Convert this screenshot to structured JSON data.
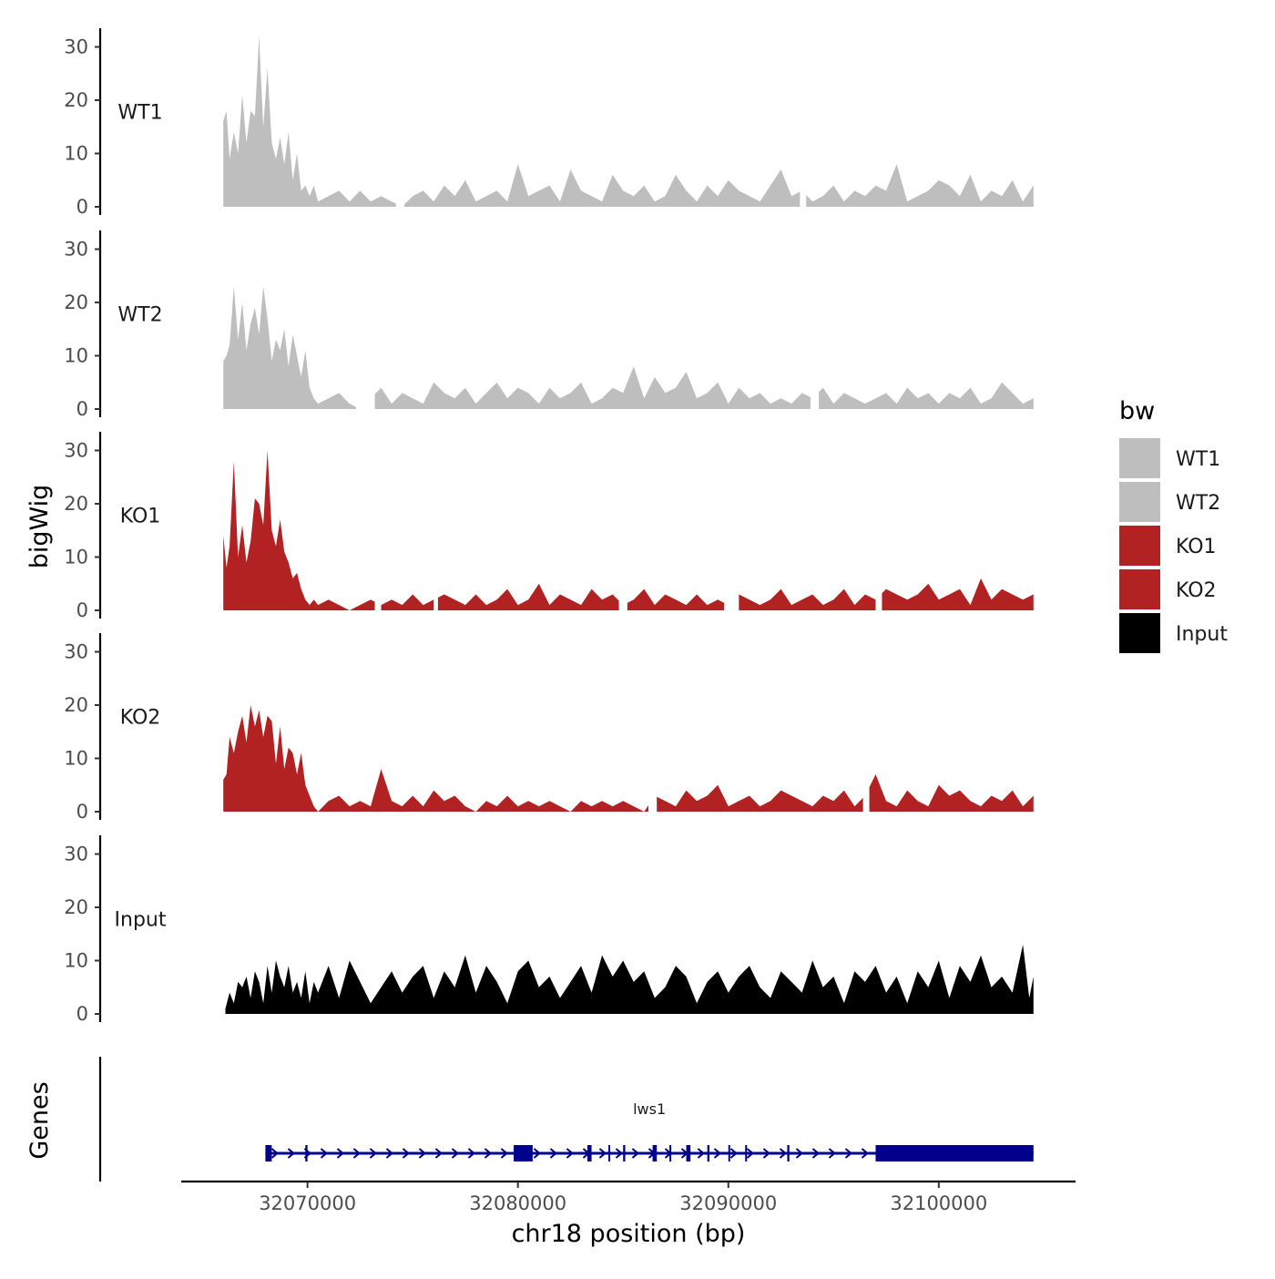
{
  "chart_data": {
    "type": "area",
    "title": "",
    "xlabel": "chr18 position (bp)",
    "ylabel": "bigWig",
    "genes_label": "Genes",
    "xlim": [
      32064000,
      32106500
    ],
    "ylim": [
      0,
      33
    ],
    "y_ticks": [
      0,
      10,
      20,
      30
    ],
    "x_ticks": [
      32070000,
      32080000,
      32090000,
      32100000
    ],
    "legend": {
      "title": "bw",
      "position": "right",
      "entries": [
        {
          "label": "WT1",
          "color": "#bebebe"
        },
        {
          "label": "WT2",
          "color": "#bebebe"
        },
        {
          "label": "KO1",
          "color": "#b22222"
        },
        {
          "label": "KO2",
          "color": "#b22222"
        },
        {
          "label": "Input",
          "color": "#000000"
        }
      ]
    },
    "series": [
      {
        "name": "WT1",
        "color": "#bebebe",
        "x": [
          32066000,
          32066150,
          32066300,
          32066500,
          32066700,
          32066900,
          32067100,
          32067300,
          32067500,
          32067700,
          32067900,
          32068100,
          32068300,
          32068500,
          32068700,
          32068900,
          32069100,
          32069300,
          32069500,
          32069700,
          32069900,
          32070100,
          32070300,
          32070500,
          32071000,
          32071500,
          32072000,
          32072500,
          32073000,
          32073500,
          32074000,
          32074500,
          32075000,
          32075500,
          32076000,
          32076500,
          32077000,
          32077500,
          32078000,
          32078500,
          32079000,
          32079500,
          32080000,
          32080500,
          32081000,
          32081500,
          32082000,
          32082500,
          32083000,
          32083500,
          32084000,
          32084500,
          32085000,
          32085500,
          32086000,
          32086500,
          32087000,
          32087500,
          32088000,
          32088500,
          32089000,
          32089500,
          32090000,
          32090500,
          32091000,
          32091500,
          32092000,
          32092500,
          32093000,
          32093500,
          32094000,
          32094500,
          32095000,
          32095500,
          32096000,
          32096500,
          32097000,
          32097500,
          32098000,
          32098500,
          32099000,
          32099500,
          32100000,
          32100500,
          32101000,
          32101500,
          32102000,
          32102500,
          32103000,
          32103500,
          32104000,
          32104500
        ],
        "values": [
          16,
          18,
          9,
          14,
          10,
          21,
          12,
          18,
          17,
          32,
          15,
          26,
          12,
          9,
          13,
          8,
          14,
          5,
          10,
          3,
          4,
          2,
          4,
          1,
          2,
          3,
          1,
          3,
          1,
          2,
          1,
          0,
          2,
          3,
          1,
          4,
          2,
          5,
          1,
          2,
          3,
          1,
          8,
          2,
          3,
          4,
          1,
          7,
          3,
          2,
          1,
          6,
          3,
          2,
          4,
          1,
          2,
          6,
          3,
          1,
          4,
          2,
          5,
          3,
          2,
          1,
          4,
          7,
          2,
          3,
          1,
          2,
          4,
          1,
          3,
          2,
          4,
          3,
          8,
          1,
          2,
          3,
          5,
          4,
          2,
          6,
          1,
          3,
          2,
          5,
          1,
          4
        ],
        "gaps": [
          [
            32074200,
            32074600
          ],
          [
            32093400,
            32093700
          ]
        ]
      },
      {
        "name": "WT2",
        "color": "#bebebe",
        "x": [
          32066000,
          32066150,
          32066300,
          32066500,
          32066700,
          32066900,
          32067100,
          32067300,
          32067500,
          32067700,
          32067900,
          32068100,
          32068300,
          32068500,
          32068700,
          32068900,
          32069100,
          32069300,
          32069500,
          32069700,
          32069900,
          32070100,
          32070300,
          32070500,
          32071000,
          32071500,
          32072000,
          32072500,
          32073000,
          32073500,
          32074000,
          32074500,
          32075000,
          32075500,
          32076000,
          32076500,
          32077000,
          32077500,
          32078000,
          32078500,
          32079000,
          32079500,
          32080000,
          32080500,
          32081000,
          32081500,
          32082000,
          32082500,
          32083000,
          32083500,
          32084000,
          32084500,
          32085000,
          32085500,
          32086000,
          32086500,
          32087000,
          32087500,
          32088000,
          32088500,
          32089000,
          32089500,
          32090000,
          32090500,
          32091000,
          32091500,
          32092000,
          32092500,
          32093000,
          32093500,
          32094000,
          32094500,
          32095000,
          32095500,
          32096000,
          32096500,
          32097000,
          32097500,
          32098000,
          32098500,
          32099000,
          32099500,
          32100000,
          32100500,
          32101000,
          32101500,
          32102000,
          32102500,
          32103000,
          32103500,
          32104000,
          32104500
        ],
        "values": [
          9,
          10,
          12,
          23,
          13,
          20,
          11,
          16,
          19,
          14,
          23,
          17,
          9,
          13,
          11,
          15,
          8,
          14,
          10,
          6,
          11,
          4,
          2,
          1,
          2,
          3,
          1,
          0,
          2,
          4,
          1,
          3,
          2,
          1,
          5,
          3,
          2,
          4,
          1,
          3,
          5,
          2,
          4,
          3,
          1,
          4,
          2,
          3,
          5,
          1,
          2,
          4,
          3,
          8,
          2,
          6,
          3,
          4,
          7,
          2,
          3,
          5,
          1,
          4,
          2,
          3,
          1,
          2,
          1,
          3,
          2,
          4,
          1,
          3,
          2,
          1,
          2,
          3,
          1,
          4,
          2,
          3,
          1,
          3,
          2,
          4,
          1,
          2,
          5,
          3,
          1,
          2
        ],
        "gaps": [
          [
            32072300,
            32073200
          ],
          [
            32093900,
            32094300
          ]
        ]
      },
      {
        "name": "KO1",
        "color": "#b22222",
        "x": [
          32066000,
          32066150,
          32066300,
          32066500,
          32066700,
          32066900,
          32067100,
          32067300,
          32067500,
          32067700,
          32067900,
          32068100,
          32068300,
          32068500,
          32068700,
          32068900,
          32069100,
          32069300,
          32069500,
          32069700,
          32069900,
          32070100,
          32070300,
          32070500,
          32071000,
          32071500,
          32072000,
          32072500,
          32073000,
          32073500,
          32074000,
          32074500,
          32075000,
          32075500,
          32076000,
          32076500,
          32077000,
          32077500,
          32078000,
          32078500,
          32079000,
          32079500,
          32080000,
          32080500,
          32081000,
          32081500,
          32082000,
          32082500,
          32083000,
          32083500,
          32084000,
          32084500,
          32085000,
          32085500,
          32086000,
          32086500,
          32087000,
          32087500,
          32088000,
          32088500,
          32089000,
          32089500,
          32090000,
          32090500,
          32091000,
          32091500,
          32092000,
          32092500,
          32093000,
          32093500,
          32094000,
          32094500,
          32095000,
          32095500,
          32096000,
          32096500,
          32097000,
          32097500,
          32098000,
          32098500,
          32099000,
          32099500,
          32100000,
          32100500,
          32101000,
          32101500,
          32102000,
          32102500,
          32103000,
          32103500,
          32104000,
          32104500
        ],
        "values": [
          14,
          8,
          12,
          28,
          10,
          16,
          9,
          13,
          21,
          20,
          16,
          30,
          15,
          12,
          17,
          11,
          9,
          6,
          7,
          4,
          2,
          1,
          2,
          1,
          2,
          1,
          0,
          1,
          2,
          1,
          2,
          1,
          3,
          1,
          2,
          3,
          2,
          1,
          3,
          1,
          2,
          4,
          1,
          2,
          5,
          1,
          3,
          2,
          1,
          4,
          2,
          3,
          1,
          2,
          4,
          1,
          3,
          2,
          1,
          3,
          1,
          2,
          1,
          3,
          2,
          1,
          2,
          4,
          1,
          2,
          3,
          1,
          2,
          4,
          1,
          3,
          2,
          4,
          3,
          2,
          3,
          5,
          2,
          3,
          4,
          1,
          6,
          2,
          4,
          3,
          2,
          3
        ],
        "gaps": [
          [
            32073200,
            32073500
          ],
          [
            32076000,
            32076200
          ],
          [
            32084800,
            32085200
          ],
          [
            32089800,
            32090500
          ],
          [
            32097000,
            32097300
          ]
        ]
      },
      {
        "name": "KO2",
        "color": "#b22222",
        "x": [
          32066000,
          32066150,
          32066300,
          32066500,
          32066700,
          32066900,
          32067100,
          32067300,
          32067500,
          32067700,
          32067900,
          32068100,
          32068300,
          32068500,
          32068700,
          32068900,
          32069100,
          32069300,
          32069500,
          32069700,
          32069900,
          32070100,
          32070300,
          32070500,
          32071000,
          32071500,
          32072000,
          32072500,
          32073000,
          32073500,
          32074000,
          32074500,
          32075000,
          32075500,
          32076000,
          32076500,
          32077000,
          32077500,
          32078000,
          32078500,
          32079000,
          32079500,
          32080000,
          32080500,
          32081000,
          32081500,
          32082000,
          32082500,
          32083000,
          32083500,
          32084000,
          32084500,
          32085000,
          32085500,
          32086000,
          32086500,
          32087000,
          32087500,
          32088000,
          32088500,
          32089000,
          32089500,
          32090000,
          32090500,
          32091000,
          32091500,
          32092000,
          32092500,
          32093000,
          32093500,
          32094000,
          32094500,
          32095000,
          32095500,
          32096000,
          32096500,
          32097000,
          32097500,
          32098000,
          32098500,
          32099000,
          32099500,
          32100000,
          32100500,
          32101000,
          32101500,
          32102000,
          32102500,
          32103000,
          32103500,
          32104000,
          32104500
        ],
        "values": [
          6,
          7,
          14,
          11,
          15,
          18,
          13,
          20,
          16,
          19,
          14,
          18,
          17,
          9,
          16,
          8,
          12,
          11,
          7,
          11,
          5,
          3,
          1,
          0,
          2,
          3,
          1,
          2,
          1,
          8,
          2,
          1,
          3,
          1,
          4,
          2,
          3,
          1,
          0,
          2,
          1,
          3,
          1,
          2,
          1,
          2,
          1,
          0,
          2,
          1,
          2,
          1,
          2,
          1,
          0,
          3,
          2,
          1,
          4,
          2,
          3,
          5,
          1,
          2,
          3,
          1,
          2,
          4,
          3,
          2,
          1,
          3,
          2,
          4,
          1,
          3,
          7,
          2,
          1,
          4,
          2,
          1,
          5,
          3,
          4,
          2,
          1,
          3,
          2,
          4,
          1,
          3
        ],
        "gaps": [
          [
            32086200,
            32086600
          ],
          [
            32096400,
            32096700
          ]
        ]
      },
      {
        "name": "Input",
        "color": "#000000",
        "x": [
          32066100,
          32066300,
          32066500,
          32066700,
          32066900,
          32067100,
          32067300,
          32067500,
          32067700,
          32067900,
          32068100,
          32068300,
          32068500,
          32068700,
          32068900,
          32069100,
          32069300,
          32069500,
          32069700,
          32069900,
          32070100,
          32070300,
          32070500,
          32071000,
          32071500,
          32072000,
          32072500,
          32073000,
          32073500,
          32074000,
          32074500,
          32075000,
          32075500,
          32076000,
          32076500,
          32077000,
          32077500,
          32078000,
          32078500,
          32079000,
          32079500,
          32080000,
          32080500,
          32081000,
          32081500,
          32082000,
          32082500,
          32083000,
          32083500,
          32084000,
          32084500,
          32085000,
          32085500,
          32086000,
          32086500,
          32087000,
          32087500,
          32088000,
          32088500,
          32089000,
          32089500,
          32090000,
          32090500,
          32091000,
          32091500,
          32092000,
          32092500,
          32093000,
          32093500,
          32094000,
          32094500,
          32095000,
          32095500,
          32096000,
          32096500,
          32097000,
          32097500,
          32098000,
          32098500,
          32099000,
          32099500,
          32100000,
          32100500,
          32101000,
          32101500,
          32102000,
          32102500,
          32103000,
          32103500,
          32104000,
          32104300,
          32104500
        ],
        "values": [
          1,
          4,
          2,
          6,
          5,
          7,
          3,
          8,
          6,
          2,
          9,
          4,
          10,
          7,
          5,
          9,
          4,
          6,
          3,
          8,
          2,
          6,
          4,
          9,
          3,
          10,
          6,
          2,
          5,
          8,
          4,
          7,
          9,
          3,
          8,
          5,
          11,
          4,
          9,
          6,
          2,
          8,
          10,
          5,
          7,
          3,
          6,
          9,
          4,
          11,
          7,
          10,
          6,
          8,
          3,
          5,
          9,
          7,
          2,
          6,
          8,
          4,
          7,
          9,
          5,
          3,
          8,
          6,
          4,
          10,
          5,
          7,
          2,
          8,
          6,
          9,
          4,
          7,
          2,
          8,
          5,
          10,
          3,
          9,
          6,
          11,
          5,
          7,
          4,
          13,
          3,
          7
        ]
      }
    ],
    "genes": [
      {
        "name": "lws1",
        "start": 32068000,
        "end": 32104500,
        "strand": "+",
        "exons": [
          [
            32068000,
            32068300
          ],
          [
            32069900,
            32070000
          ],
          [
            32079800,
            32080700
          ],
          [
            32083300,
            32083500
          ],
          [
            32084300,
            32084350
          ],
          [
            32085000,
            32085100
          ],
          [
            32086400,
            32086600
          ],
          [
            32087200,
            32087250
          ],
          [
            32088000,
            32088200
          ],
          [
            32089000,
            32089100
          ],
          [
            32090000,
            32090050
          ],
          [
            32090800,
            32090850
          ],
          [
            32092800,
            32092900
          ],
          [
            32097000,
            32104500
          ]
        ]
      }
    ]
  }
}
